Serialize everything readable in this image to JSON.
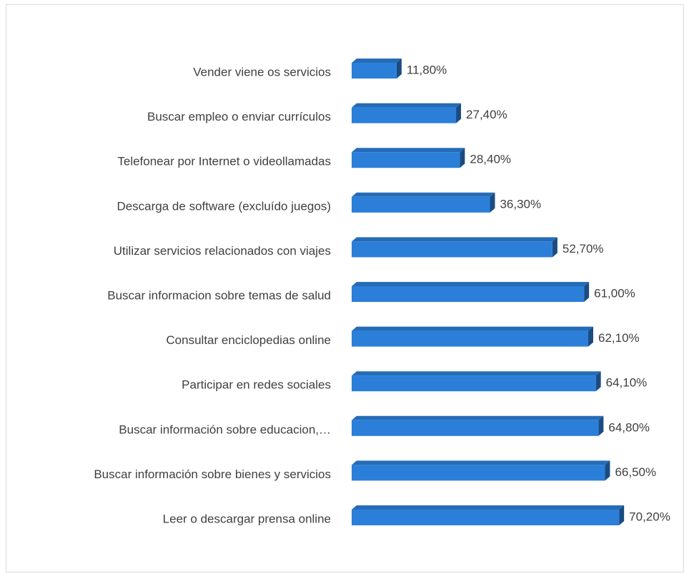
{
  "chart_data": {
    "type": "bar",
    "orientation": "horizontal",
    "categories": [
      "Vender viene os servicios",
      "Buscar empleo o enviar currículos",
      "Telefonear por Internet o videollamadas",
      "Descarga de software (excluído juegos)",
      "Utilizar servicios relacionados con viajes",
      "Buscar informacion sobre temas de salud",
      "Consultar enciclopedias online",
      "Participar en redes sociales",
      "Buscar información sobre educacion,…",
      "Buscar información sobre bienes y servicios",
      "Leer o descargar prensa online"
    ],
    "values": [
      11.8,
      27.4,
      28.4,
      36.3,
      52.7,
      61.0,
      62.1,
      64.1,
      64.8,
      66.5,
      70.2
    ],
    "value_labels": [
      "11,80%",
      "27,40%",
      "28,40%",
      "36,30%",
      "52,70%",
      "61,00%",
      "62,10%",
      "64,10%",
      "64,80%",
      "66,50%",
      "70,20%"
    ],
    "color": "#2b7fd9"
  }
}
